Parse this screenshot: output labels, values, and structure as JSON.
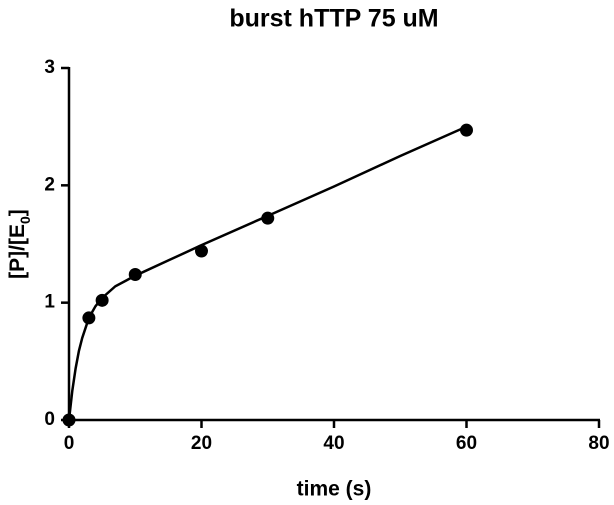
{
  "chart_data": {
    "type": "scatter",
    "title": "burst hTTP 75 uM",
    "x_label": "time (s)",
    "y_label": {
      "text": "[P]/[E",
      "subscript": "0",
      "suffix": "]"
    },
    "x": [
      0,
      3,
      5,
      10,
      20,
      30,
      60
    ],
    "values": [
      0,
      0.87,
      1.02,
      1.24,
      1.44,
      1.72,
      2.47
    ],
    "color": "#000000",
    "fit": {
      "x": [
        0,
        0.5,
        1,
        1.5,
        2,
        3,
        4,
        5,
        7,
        10,
        15,
        20,
        30,
        40,
        50,
        60
      ],
      "values": [
        0,
        0.25,
        0.44,
        0.59,
        0.7,
        0.87,
        0.97,
        1.04,
        1.14,
        1.23,
        1.36,
        1.49,
        1.74,
        1.99,
        2.25,
        2.5
      ]
    },
    "xlim": [
      0,
      80
    ],
    "xticks": [
      0,
      20,
      40,
      60,
      80
    ],
    "ylim": [
      0,
      3
    ],
    "yticks": [
      0,
      1,
      2,
      3
    ]
  }
}
